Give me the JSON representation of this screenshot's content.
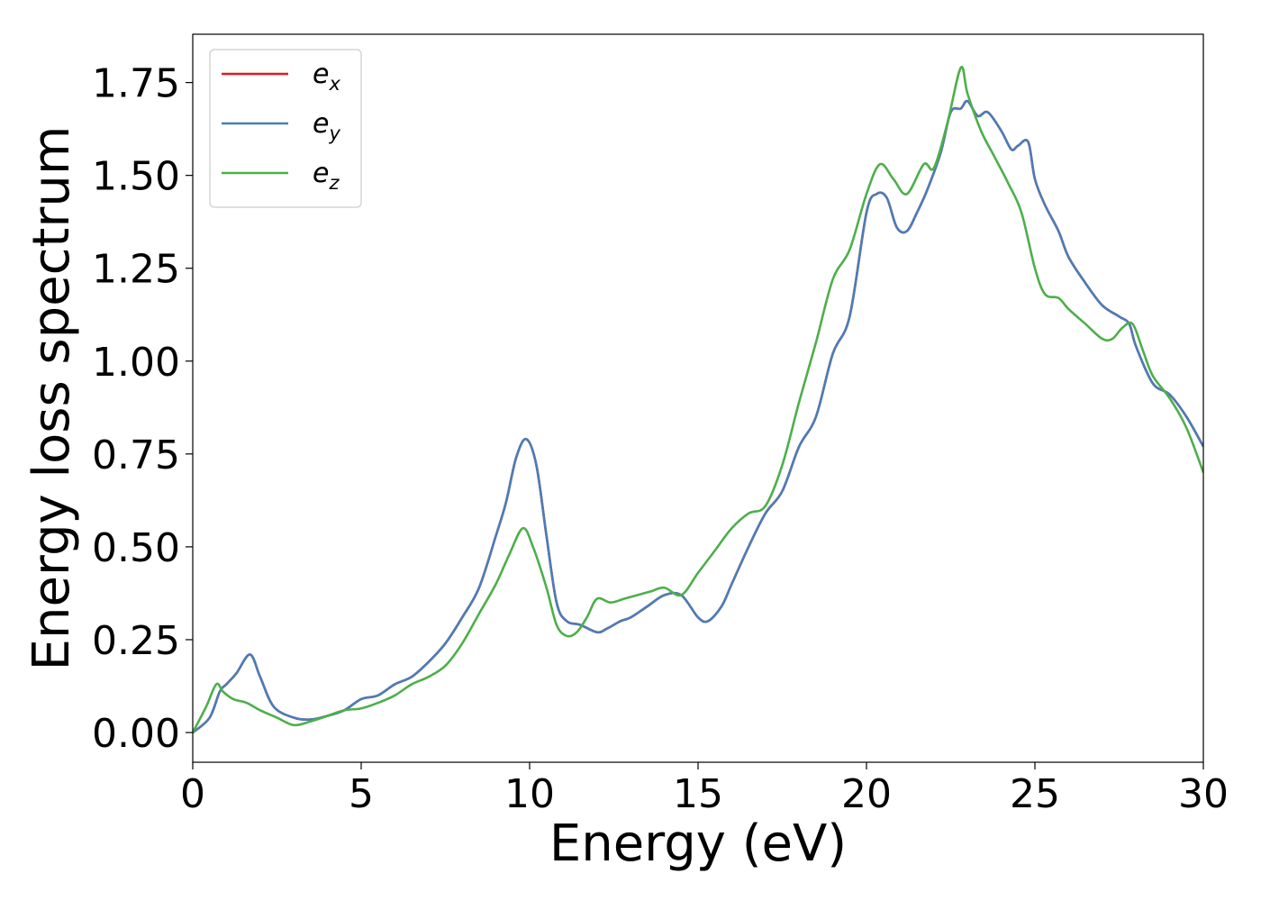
{
  "chart_data": {
    "type": "line",
    "title": "",
    "xlabel": "Energy (eV)",
    "ylabel": "Energy loss spectrum",
    "xlim": [
      0,
      30
    ],
    "ylim": [
      -0.08,
      1.88
    ],
    "xticks": [
      0,
      5,
      10,
      15,
      20,
      25,
      30
    ],
    "xtick_labels": [
      "0",
      "5",
      "10",
      "15",
      "20",
      "25",
      "30"
    ],
    "yticks": [
      0.0,
      0.25,
      0.5,
      0.75,
      1.0,
      1.25,
      1.5,
      1.75
    ],
    "ytick_labels": [
      "0.00",
      "0.25",
      "0.50",
      "0.75",
      "1.00",
      "1.25",
      "1.50",
      "1.75"
    ],
    "grid": false,
    "legend_position": "top-left",
    "series": [
      {
        "name": "e_x",
        "legend_base": "e",
        "legend_sub": "x",
        "color": "#e41a1c",
        "x": [
          0,
          0.5,
          0.8,
          1.0,
          1.3,
          1.7,
          2.0,
          2.4,
          3.0,
          3.5,
          4.0,
          4.5,
          5.0,
          5.5,
          6.0,
          6.5,
          7.0,
          7.5,
          8.0,
          8.5,
          9.0,
          9.3,
          9.6,
          9.9,
          10.2,
          10.5,
          10.8,
          11.1,
          11.5,
          12.0,
          12.3,
          12.7,
          13.0,
          13.5,
          14.0,
          14.5,
          15.0,
          15.3,
          15.7,
          16.0,
          16.5,
          17.0,
          17.5,
          18.0,
          18.5,
          19.0,
          19.5,
          20.0,
          20.3,
          20.6,
          20.9,
          21.2,
          21.5,
          21.8,
          22.2,
          22.5,
          22.8,
          23.0,
          23.3,
          23.6,
          24.0,
          24.3,
          24.5,
          24.8,
          25.0,
          25.3,
          25.7,
          26.0,
          26.5,
          27.0,
          27.5,
          27.8,
          28.0,
          28.5,
          29.0,
          29.5,
          30.0
        ],
        "y": [
          0.0,
          0.04,
          0.11,
          0.13,
          0.16,
          0.21,
          0.15,
          0.07,
          0.04,
          0.035,
          0.045,
          0.06,
          0.09,
          0.1,
          0.13,
          0.15,
          0.19,
          0.24,
          0.31,
          0.39,
          0.53,
          0.62,
          0.74,
          0.79,
          0.72,
          0.53,
          0.35,
          0.3,
          0.29,
          0.27,
          0.28,
          0.3,
          0.31,
          0.34,
          0.37,
          0.37,
          0.31,
          0.3,
          0.34,
          0.4,
          0.5,
          0.59,
          0.65,
          0.77,
          0.85,
          1.02,
          1.12,
          1.4,
          1.45,
          1.44,
          1.36,
          1.35,
          1.4,
          1.46,
          1.56,
          1.67,
          1.68,
          1.7,
          1.66,
          1.67,
          1.62,
          1.57,
          1.58,
          1.59,
          1.49,
          1.42,
          1.35,
          1.28,
          1.21,
          1.15,
          1.12,
          1.1,
          1.04,
          0.94,
          0.91,
          0.85,
          0.77
        ]
      },
      {
        "name": "e_y",
        "legend_base": "e",
        "legend_sub": "y",
        "color": "#4a7db8",
        "x": [
          0,
          0.5,
          0.8,
          1.0,
          1.3,
          1.7,
          2.0,
          2.4,
          3.0,
          3.5,
          4.0,
          4.5,
          5.0,
          5.5,
          6.0,
          6.5,
          7.0,
          7.5,
          8.0,
          8.5,
          9.0,
          9.3,
          9.6,
          9.9,
          10.2,
          10.5,
          10.8,
          11.1,
          11.5,
          12.0,
          12.3,
          12.7,
          13.0,
          13.5,
          14.0,
          14.5,
          15.0,
          15.3,
          15.7,
          16.0,
          16.5,
          17.0,
          17.5,
          18.0,
          18.5,
          19.0,
          19.5,
          20.0,
          20.3,
          20.6,
          20.9,
          21.2,
          21.5,
          21.8,
          22.2,
          22.5,
          22.8,
          23.0,
          23.3,
          23.6,
          24.0,
          24.3,
          24.5,
          24.8,
          25.0,
          25.3,
          25.7,
          26.0,
          26.5,
          27.0,
          27.5,
          27.8,
          28.0,
          28.5,
          29.0,
          29.5,
          30.0
        ],
        "y": [
          0.0,
          0.04,
          0.11,
          0.13,
          0.16,
          0.21,
          0.15,
          0.07,
          0.04,
          0.035,
          0.045,
          0.06,
          0.09,
          0.1,
          0.13,
          0.15,
          0.19,
          0.24,
          0.31,
          0.39,
          0.53,
          0.62,
          0.74,
          0.79,
          0.72,
          0.53,
          0.35,
          0.3,
          0.29,
          0.27,
          0.28,
          0.3,
          0.31,
          0.34,
          0.37,
          0.37,
          0.31,
          0.3,
          0.34,
          0.4,
          0.5,
          0.59,
          0.65,
          0.77,
          0.85,
          1.02,
          1.12,
          1.4,
          1.45,
          1.44,
          1.36,
          1.35,
          1.4,
          1.46,
          1.56,
          1.67,
          1.68,
          1.7,
          1.66,
          1.67,
          1.62,
          1.57,
          1.58,
          1.59,
          1.49,
          1.42,
          1.35,
          1.28,
          1.21,
          1.15,
          1.12,
          1.1,
          1.04,
          0.94,
          0.91,
          0.85,
          0.77
        ]
      },
      {
        "name": "e_z",
        "legend_base": "e",
        "legend_sub": "z",
        "color": "#4daf4a",
        "x": [
          0,
          0.4,
          0.7,
          0.9,
          1.2,
          1.6,
          2.0,
          2.5,
          3.0,
          3.5,
          4.0,
          4.5,
          5.0,
          5.5,
          6.0,
          6.5,
          7.0,
          7.5,
          8.0,
          8.5,
          9.0,
          9.4,
          9.8,
          10.1,
          10.5,
          10.8,
          11.1,
          11.4,
          11.7,
          12.0,
          12.4,
          12.8,
          13.2,
          13.6,
          14.0,
          14.5,
          15.0,
          15.5,
          16.0,
          16.5,
          17.0,
          17.5,
          18.0,
          18.5,
          19.0,
          19.5,
          20.0,
          20.4,
          20.8,
          21.2,
          21.7,
          22.0,
          22.4,
          22.8,
          23.0,
          23.4,
          23.8,
          24.2,
          24.6,
          25.0,
          25.3,
          25.7,
          26.0,
          26.5,
          27.0,
          27.3,
          27.6,
          27.9,
          28.2,
          28.5,
          29.0,
          29.5,
          30.0
        ],
        "y": [
          0.0,
          0.07,
          0.13,
          0.11,
          0.09,
          0.08,
          0.06,
          0.04,
          0.02,
          0.03,
          0.045,
          0.06,
          0.065,
          0.08,
          0.1,
          0.13,
          0.15,
          0.18,
          0.24,
          0.32,
          0.4,
          0.48,
          0.55,
          0.5,
          0.39,
          0.29,
          0.26,
          0.27,
          0.31,
          0.36,
          0.35,
          0.36,
          0.37,
          0.38,
          0.39,
          0.37,
          0.43,
          0.49,
          0.55,
          0.59,
          0.61,
          0.72,
          0.89,
          1.05,
          1.22,
          1.3,
          1.45,
          1.53,
          1.49,
          1.45,
          1.53,
          1.52,
          1.64,
          1.79,
          1.72,
          1.62,
          1.55,
          1.48,
          1.4,
          1.25,
          1.18,
          1.17,
          1.14,
          1.1,
          1.06,
          1.06,
          1.09,
          1.1,
          1.03,
          0.96,
          0.9,
          0.82,
          0.7
        ]
      }
    ]
  }
}
